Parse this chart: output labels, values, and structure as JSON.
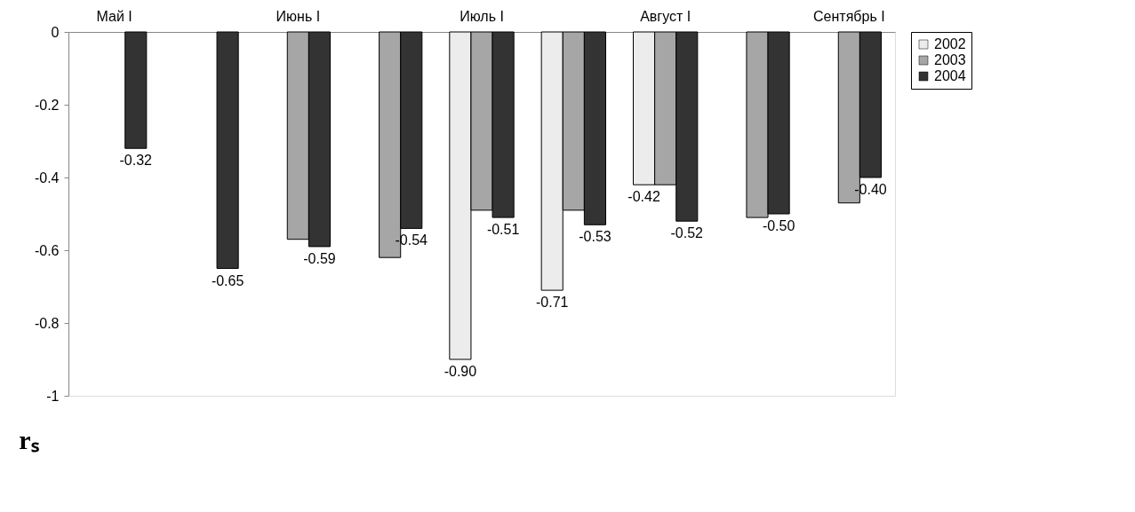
{
  "chart_data": {
    "type": "bar",
    "ylabel": "rₛ",
    "categories": [
      "Май I",
      null,
      "Июнь I",
      null,
      "Июль I",
      null,
      "Август I",
      null,
      "Сентябрь I"
    ],
    "series": [
      {
        "name": "2002",
        "color": "#ececec",
        "values": [
          null,
          null,
          null,
          null,
          -0.9,
          -0.71,
          -0.42,
          null,
          null
        ],
        "value_labels": [
          null,
          null,
          null,
          null,
          "-0.90",
          "-0.71",
          "-0.42",
          null,
          null
        ]
      },
      {
        "name": "2003",
        "color": "#a6a6a6",
        "values": [
          null,
          null,
          -0.57,
          -0.62,
          -0.49,
          -0.49,
          -0.42,
          -0.51,
          -0.47
        ],
        "value_labels": [
          null,
          null,
          null,
          null,
          null,
          null,
          null,
          null,
          null
        ]
      },
      {
        "name": "2004",
        "color": "#333333",
        "values": [
          -0.32,
          -0.65,
          -0.59,
          -0.54,
          -0.51,
          -0.53,
          -0.52,
          -0.5,
          -0.4
        ],
        "value_labels": [
          "-0.32",
          "-0.65",
          "-0.59",
          "-0.54",
          "-0.51",
          "-0.53",
          "-0.52",
          "-0.50",
          "-0.40"
        ]
      }
    ],
    "ylim": [
      -1,
      0
    ],
    "yticks": [
      0,
      -0.2,
      -0.4,
      -0.6,
      -0.8,
      -1
    ],
    "grid": false,
    "legend": "right"
  }
}
